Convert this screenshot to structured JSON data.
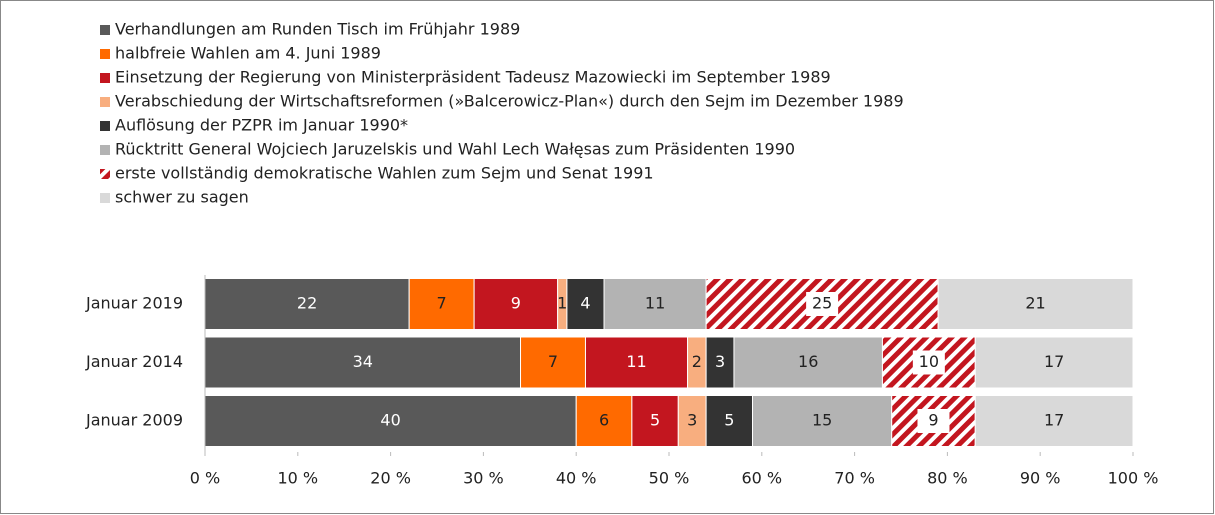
{
  "chart_data": {
    "type": "stacked-bar-horizontal",
    "categories": [
      "Januar 2019",
      "Januar 2014",
      "Januar 2009"
    ],
    "series": [
      {
        "name": "Verhandlungen am Runden Tisch im Frühjahr 1989",
        "color": "#595959",
        "values": [
          22,
          34,
          40
        ]
      },
      {
        "name": "halbfreie Wahlen am 4. Juni 1989",
        "color": "#ff6a00",
        "values": [
          7,
          7,
          6
        ]
      },
      {
        "name": "Einsetzung der Regierung von Ministerpräsident Tadeusz Mazowiecki im September 1989",
        "color": "#c3161f",
        "values": [
          9,
          11,
          5
        ]
      },
      {
        "name": "Verabschiedung der Wirtschaftsreformen (»Balcerowicz-Plan«) durch den Sejm im Dezember 1989",
        "color": "#f8ae7f",
        "values": [
          1,
          2,
          3
        ]
      },
      {
        "name": "Auflösung der PZPR im Januar 1990*",
        "color": "#333333",
        "values": [
          4,
          3,
          5
        ]
      },
      {
        "name": "Rücktritt General Wojciech Jaruzelskis und Wahl Lech Wałęsas zum Präsidenten 1990",
        "color": "#b3b3b3",
        "values": [
          11,
          16,
          15
        ]
      },
      {
        "name": "erste vollständig demokratische Wahlen zum Sejm und Senat 1991",
        "color": "#c3161f",
        "hatch": true,
        "values": [
          25,
          10,
          9
        ]
      },
      {
        "name": "schwer zu sagen",
        "color": "#d9d9d9",
        "values": [
          21,
          17,
          17
        ]
      }
    ],
    "xlim": [
      0,
      100
    ],
    "xticks": [
      {
        "value": 0,
        "label": "0 %"
      },
      {
        "value": 10,
        "label": "10 %"
      },
      {
        "value": 20,
        "label": "20 %"
      },
      {
        "value": 30,
        "label": "30 %"
      },
      {
        "value": 40,
        "label": "40 %"
      },
      {
        "value": 50,
        "label": "50 %"
      },
      {
        "value": 60,
        "label": "60 %"
      },
      {
        "value": 70,
        "label": "70 %"
      },
      {
        "value": 80,
        "label": "80 %"
      },
      {
        "value": 90,
        "label": "90 %"
      },
      {
        "value": 100,
        "label": "100 %"
      }
    ],
    "legend": "top-left"
  }
}
